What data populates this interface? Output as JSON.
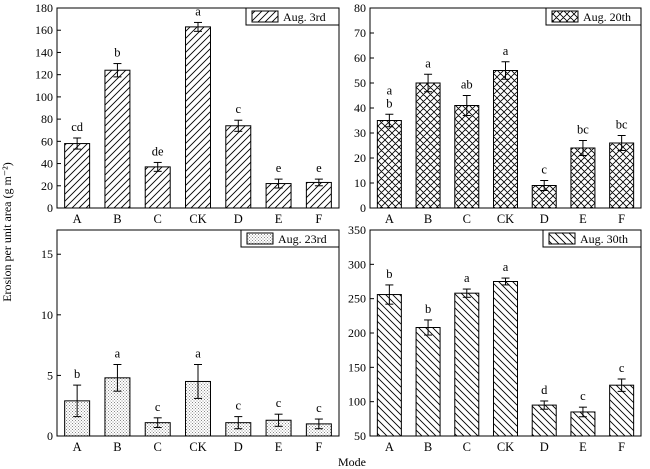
{
  "xlabel": "Mode",
  "ylabel": "Erosion per unit area (g m⁻²)",
  "colors": {
    "bar_stroke": "#000000",
    "bar_fill": "#ffffff",
    "dot_fill": "#bbbbbb"
  },
  "chart_data": [
    {
      "type": "bar",
      "legend": "Aug. 3rd",
      "legend_position": "top-right",
      "pattern": "diagonal-up",
      "categories": [
        "A",
        "B",
        "C",
        "CK",
        "D",
        "E",
        "F"
      ],
      "values": [
        58,
        124,
        37,
        163,
        74,
        22,
        23
      ],
      "errors": [
        5,
        6,
        4,
        4,
        5,
        4,
        3
      ],
      "letters": [
        "cd",
        "b",
        "de",
        "a",
        "c",
        "e",
        "e"
      ],
      "ylim": [
        0,
        180
      ],
      "yticks": [
        0,
        20,
        40,
        60,
        80,
        100,
        120,
        140,
        160,
        180
      ]
    },
    {
      "type": "bar",
      "legend": "Aug. 20th",
      "legend_position": "top-right",
      "pattern": "crosshatch",
      "categories": [
        "A",
        "B",
        "C",
        "CK",
        "D",
        "E",
        "F"
      ],
      "values": [
        35,
        50,
        41,
        55,
        9,
        24,
        26
      ],
      "errors": [
        2.5,
        3.5,
        4,
        3.5,
        2,
        3,
        3
      ],
      "letters": [
        "a\nb",
        "a",
        "ab",
        "a",
        "c",
        "bc",
        "bc"
      ],
      "ylim": [
        0,
        80
      ],
      "yticks": [
        0,
        10,
        20,
        30,
        40,
        50,
        60,
        70,
        80
      ]
    },
    {
      "type": "bar",
      "legend": "Aug. 23rd",
      "legend_position": "top-right",
      "pattern": "dots",
      "categories": [
        "A",
        "B",
        "C",
        "CK",
        "D",
        "E",
        "F"
      ],
      "values": [
        2.9,
        4.8,
        1.1,
        4.5,
        1.1,
        1.3,
        1.0
      ],
      "errors": [
        1.3,
        1.1,
        0.4,
        1.4,
        0.5,
        0.5,
        0.4
      ],
      "letters": [
        "b",
        "a",
        "c",
        "a",
        "c",
        "c",
        "c"
      ],
      "ylim": [
        0,
        17
      ],
      "yticks": [
        0,
        5,
        10,
        15
      ]
    },
    {
      "type": "bar",
      "legend": "Aug. 30th",
      "legend_position": "top-right",
      "pattern": "diagonal-down",
      "categories": [
        "A",
        "B",
        "C",
        "CK",
        "D",
        "E",
        "F"
      ],
      "values": [
        256,
        208,
        258,
        275,
        95,
        85,
        124
      ],
      "errors": [
        14,
        11,
        6,
        5,
        6,
        7,
        9
      ],
      "letters": [
        "b",
        "b",
        "a",
        "a",
        "d",
        "c",
        "c"
      ],
      "ylim": [
        50,
        350
      ],
      "yticks": [
        50,
        100,
        150,
        200,
        250,
        300,
        350
      ]
    }
  ]
}
